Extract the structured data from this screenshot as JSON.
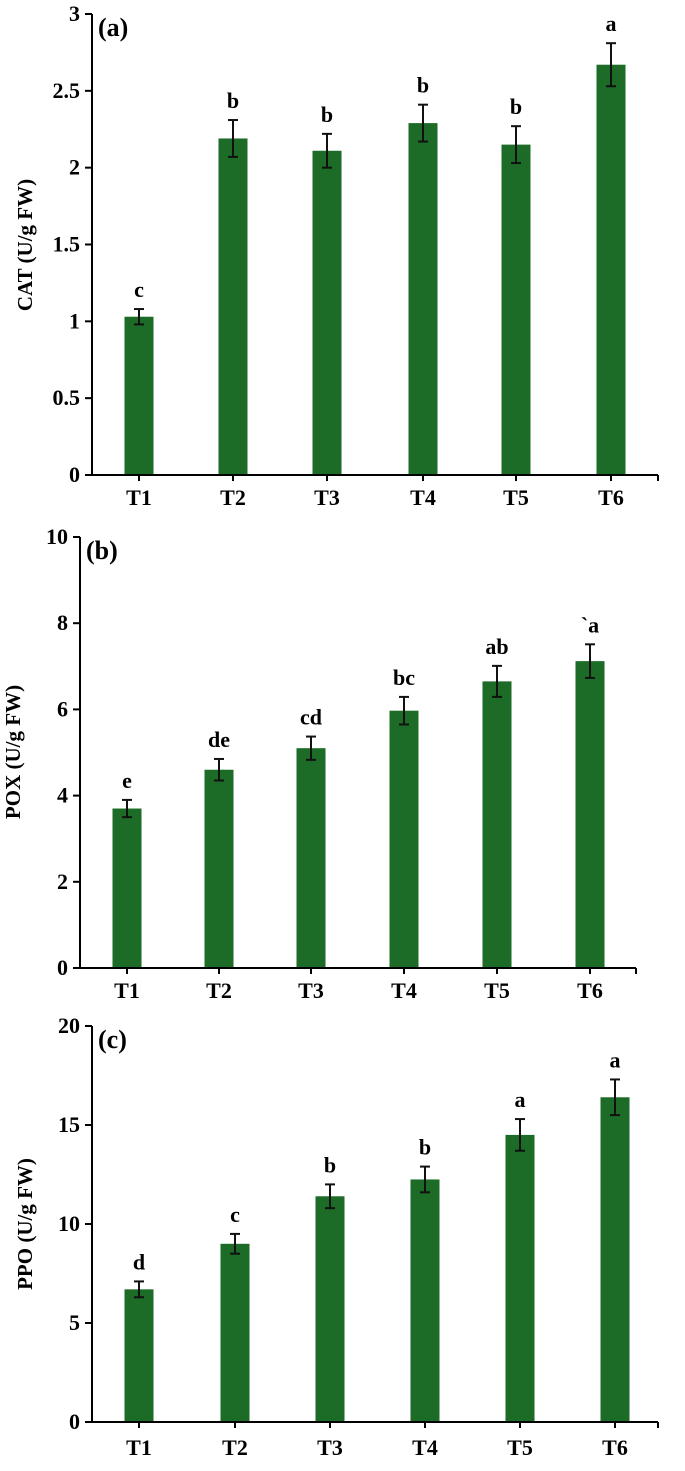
{
  "bar_color": "#1c6b26",
  "chart_data": [
    {
      "type": "bar",
      "panel": "(a)",
      "title": "",
      "xlabel": "",
      "ylabel": "CAT (U/g FW)",
      "categories": [
        "T1",
        "T2",
        "T3",
        "T4",
        "T5",
        "T6"
      ],
      "values": [
        1.03,
        2.19,
        2.11,
        2.29,
        2.15,
        2.67
      ],
      "errors": [
        0.05,
        0.12,
        0.11,
        0.12,
        0.12,
        0.14
      ],
      "significance": [
        "c",
        "b",
        "b",
        "b",
        "b",
        "a"
      ],
      "ylim": [
        0,
        3
      ],
      "yticks": [
        0,
        0.5,
        1,
        1.5,
        2,
        2.5,
        3
      ],
      "ytick_labels": [
        "0",
        "0.5",
        "1",
        "1.5",
        "2",
        "2.5",
        "3"
      ],
      "grid": false,
      "legend": null
    },
    {
      "type": "bar",
      "panel": "(b)",
      "title": "",
      "xlabel": "",
      "ylabel": "POX (U/g FW)",
      "categories": [
        "T1",
        "T2",
        "T3",
        "T4",
        "T5",
        "T6"
      ],
      "values": [
        3.7,
        4.6,
        5.1,
        5.97,
        6.65,
        7.12
      ],
      "errors": [
        0.2,
        0.25,
        0.27,
        0.32,
        0.36,
        0.39
      ],
      "significance": [
        "e",
        "de",
        "cd",
        "bc",
        "ab",
        "`a"
      ],
      "ylim": [
        0,
        10
      ],
      "yticks": [
        0,
        2,
        4,
        6,
        8,
        10
      ],
      "ytick_labels": [
        "0",
        "2",
        "4",
        "6",
        "8",
        "10"
      ],
      "grid": false,
      "legend": null
    },
    {
      "type": "bar",
      "panel": "(c)",
      "title": "",
      "xlabel": "",
      "ylabel": "PPO (U/g FW)",
      "categories": [
        "T1",
        "T2",
        "T3",
        "T4",
        "T5",
        "T6"
      ],
      "values": [
        6.7,
        9.0,
        11.4,
        12.25,
        14.5,
        16.4
      ],
      "errors": [
        0.4,
        0.5,
        0.6,
        0.65,
        0.8,
        0.9
      ],
      "significance": [
        "d",
        "c",
        "b",
        "b",
        "a",
        "a"
      ],
      "ylim": [
        0,
        20
      ],
      "yticks": [
        0,
        5,
        10,
        15,
        20
      ],
      "ytick_labels": [
        "0",
        "5",
        "10",
        "15",
        "20"
      ],
      "grid": false,
      "legend": null
    }
  ]
}
